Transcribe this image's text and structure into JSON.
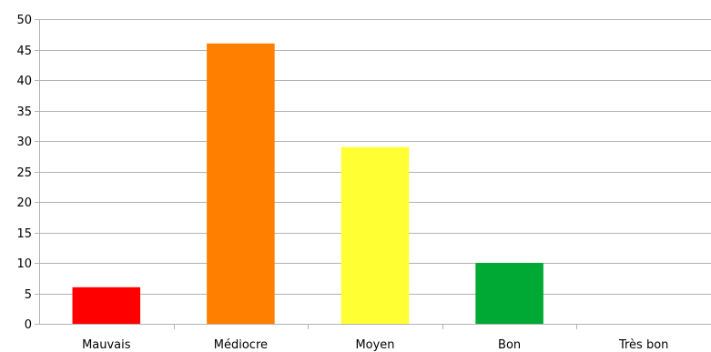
{
  "chart_data": {
    "type": "bar",
    "title": "",
    "xlabel": "",
    "ylabel": "",
    "categories": [
      "Mauvais",
      "Médiocre",
      "Moyen",
      "Bon",
      "Très bon"
    ],
    "values": [
      6,
      46,
      29,
      10,
      0
    ],
    "colors": [
      "#ff0000",
      "#ff8000",
      "#ffff33",
      "#00a933",
      "#2a6099"
    ],
    "ylim": [
      0,
      50
    ],
    "yticks": [
      "0",
      "5",
      "10",
      "15",
      "20",
      "25",
      "30",
      "35",
      "40",
      "45",
      "50"
    ],
    "grid": true,
    "legend": "none"
  }
}
